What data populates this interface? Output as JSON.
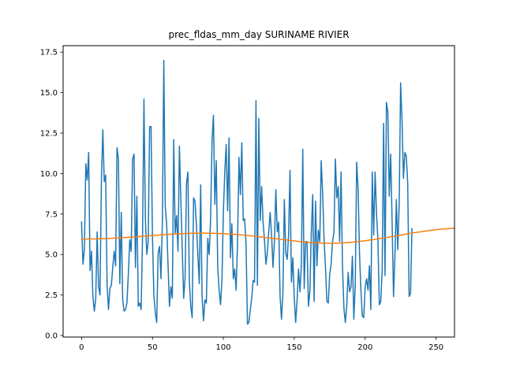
{
  "chart_data": {
    "type": "line",
    "title": "prec_fldas_mm_day SURINAME RIVIER",
    "xlabel": "",
    "ylabel": "",
    "xlim": [
      -13,
      263
    ],
    "ylim": [
      -0.1,
      17.9
    ],
    "xticks": [
      0,
      50,
      100,
      150,
      200,
      250
    ],
    "xtick_labels": [
      "0",
      "50",
      "100",
      "150",
      "200",
      "250"
    ],
    "yticks": [
      0.0,
      2.5,
      5.0,
      7.5,
      10.0,
      12.5,
      15.0,
      17.5
    ],
    "ytick_labels": [
      "0.0",
      "2.5",
      "5.0",
      "7.5",
      "10.0",
      "12.5",
      "15.0",
      "17.5"
    ],
    "grid": false,
    "series": [
      {
        "color": "#1f77b4",
        "x_start": 0,
        "x_step": 1,
        "values": [
          7.0,
          4.4,
          5.3,
          10.6,
          9.6,
          11.3,
          4.0,
          5.2,
          2.4,
          1.5,
          2.3,
          6.4,
          3.0,
          2.5,
          9.6,
          12.7,
          9.5,
          9.9,
          3.1,
          1.6,
          2.9,
          3.1,
          4.2,
          5.2,
          4.3,
          11.6,
          10.9,
          3.2,
          7.6,
          2.2,
          1.5,
          1.6,
          2.0,
          3.8,
          5.9,
          5.2,
          10.9,
          11.2,
          4.2,
          8.6,
          1.8,
          2.0,
          1.6,
          6.1,
          14.6,
          7.2,
          5.0,
          5.8,
          12.9,
          12.9,
          6.1,
          2.5,
          1.4,
          0.8,
          5.1,
          5.5,
          3.5,
          7.0,
          17.0,
          8.0,
          6.9,
          4.3,
          1.8,
          3.0,
          2.3,
          12.1,
          6.3,
          7.4,
          5.2,
          11.7,
          8.4,
          5.4,
          2.3,
          3.5,
          9.4,
          10.1,
          3.4,
          1.8,
          1.1,
          8.5,
          8.3,
          6.8,
          5.0,
          3.2,
          9.3,
          2.4,
          0.9,
          2.2,
          2.0,
          6.0,
          5.0,
          7.2,
          12.0,
          13.6,
          8.1,
          10.8,
          4.3,
          2.8,
          1.9,
          3.4,
          7.6,
          10.1,
          11.8,
          7.7,
          12.2,
          4.8,
          6.9,
          3.5,
          4.1,
          2.8,
          5.7,
          11.0,
          8.7,
          11.9,
          7.1,
          7.2,
          5.6,
          0.7,
          0.8,
          1.6,
          2.3,
          3.4,
          3.3,
          14.5,
          3.1,
          13.4,
          7.1,
          9.2,
          7.0,
          5.9,
          4.4,
          5.1,
          6.4,
          7.6,
          6.2,
          4.2,
          5.8,
          9.0,
          6.4,
          7.0,
          2.4,
          1.0,
          2.6,
          8.4,
          5.1,
          4.7,
          6.2,
          10.2,
          3.3,
          4.8,
          2.3,
          0.8,
          2.2,
          4.1,
          2.7,
          4.3,
          11.5,
          2.9,
          5.8,
          5.8,
          1.8,
          2.7,
          6.3,
          8.7,
          2.1,
          8.3,
          4.3,
          6.5,
          5.8,
          10.8,
          8.8,
          6.0,
          4.2,
          2.1,
          2.0,
          3.8,
          4.4,
          5.8,
          6.4,
          10.9,
          8.5,
          9.2,
          5.8,
          10.1,
          4.3,
          1.7,
          0.8,
          1.8,
          3.9,
          2.7,
          3.0,
          4.9,
          1.0,
          3.1,
          10.7,
          9.1,
          5.1,
          2.8,
          1.2,
          1.1,
          3.0,
          3.5,
          2.8,
          4.3,
          1.6,
          10.1,
          6.2,
          10.1,
          7.5,
          5.9,
          1.9,
          2.1,
          4.0,
          13.1,
          3.7,
          14.4,
          13.8,
          8.6,
          11.2,
          7.0,
          2.4,
          4.9,
          8.4,
          5.3,
          8.1,
          15.6,
          13.3,
          9.7,
          11.3,
          11.1,
          9.4,
          2.4,
          2.6,
          6.6
        ]
      },
      {
        "color": "#ff7f0e",
        "x_start": 0,
        "x_step": 1,
        "values": [
          5.95,
          5.95,
          5.95,
          5.95,
          5.95,
          5.96,
          5.96,
          5.96,
          5.96,
          5.96,
          5.96,
          5.97,
          5.97,
          5.97,
          5.97,
          5.98,
          5.98,
          5.98,
          5.99,
          5.99,
          5.99,
          6.0,
          6.0,
          6.01,
          6.01,
          6.02,
          6.02,
          6.03,
          6.03,
          6.04,
          6.04,
          6.05,
          6.06,
          6.06,
          6.07,
          6.07,
          6.08,
          6.09,
          6.09,
          6.1,
          6.11,
          6.11,
          6.12,
          6.13,
          6.13,
          6.14,
          6.15,
          6.15,
          6.16,
          6.17,
          6.17,
          6.18,
          6.19,
          6.19,
          6.2,
          6.21,
          6.21,
          6.22,
          6.22,
          6.23,
          6.24,
          6.24,
          6.25,
          6.25,
          6.26,
          6.26,
          6.27,
          6.27,
          6.28,
          6.28,
          6.28,
          6.29,
          6.29,
          6.29,
          6.3,
          6.3,
          6.3,
          6.31,
          6.31,
          6.31,
          6.31,
          6.31,
          6.31,
          6.31,
          6.32,
          6.32,
          6.32,
          6.32,
          6.32,
          6.31,
          6.31,
          6.31,
          6.31,
          6.31,
          6.31,
          6.3,
          6.3,
          6.3,
          6.29,
          6.29,
          6.29,
          6.28,
          6.28,
          6.27,
          6.27,
          6.26,
          6.26,
          6.25,
          6.24,
          6.24,
          6.23,
          6.22,
          6.22,
          6.21,
          6.2,
          6.19,
          6.18,
          6.18,
          6.17,
          6.16,
          6.15,
          6.14,
          6.13,
          6.12,
          6.11,
          6.1,
          6.09,
          6.08,
          6.07,
          6.06,
          6.05,
          6.04,
          6.03,
          6.02,
          6.01,
          5.99,
          5.98,
          5.97,
          5.96,
          5.95,
          5.94,
          5.93,
          5.92,
          5.91,
          5.9,
          5.89,
          5.88,
          5.87,
          5.86,
          5.85,
          5.84,
          5.83,
          5.82,
          5.81,
          5.8,
          5.79,
          5.78,
          5.77,
          5.77,
          5.76,
          5.75,
          5.74,
          5.74,
          5.73,
          5.73,
          5.72,
          5.72,
          5.71,
          5.71,
          5.7,
          5.7,
          5.7,
          5.7,
          5.7,
          5.69,
          5.69,
          5.69,
          5.7,
          5.7,
          5.7,
          5.7,
          5.7,
          5.71,
          5.71,
          5.72,
          5.72,
          5.73,
          5.73,
          5.74,
          5.75,
          5.75,
          5.76,
          5.77,
          5.78,
          5.79,
          5.8,
          5.81,
          5.82,
          5.83,
          5.84,
          5.85,
          5.86,
          5.87,
          5.89,
          5.9,
          5.91,
          5.92,
          5.94,
          5.95,
          5.96,
          5.98,
          5.99,
          6.01,
          6.02,
          6.04,
          6.05,
          6.07,
          6.08,
          6.1,
          6.11,
          6.13,
          6.14,
          6.16,
          6.17,
          6.19,
          6.2,
          6.22,
          6.23,
          6.25,
          6.26,
          6.28,
          6.29,
          6.31,
          6.32,
          6.34,
          6.35,
          6.36,
          6.38,
          6.39,
          6.4,
          6.42,
          6.43,
          6.44,
          6.45,
          6.47,
          6.48,
          6.49,
          6.5,
          6.51,
          6.52,
          6.53,
          6.54,
          6.55,
          6.56,
          6.57,
          6.57,
          6.58,
          6.59,
          6.59,
          6.6,
          6.61,
          6.61,
          6.62,
          6.62
        ]
      }
    ]
  }
}
